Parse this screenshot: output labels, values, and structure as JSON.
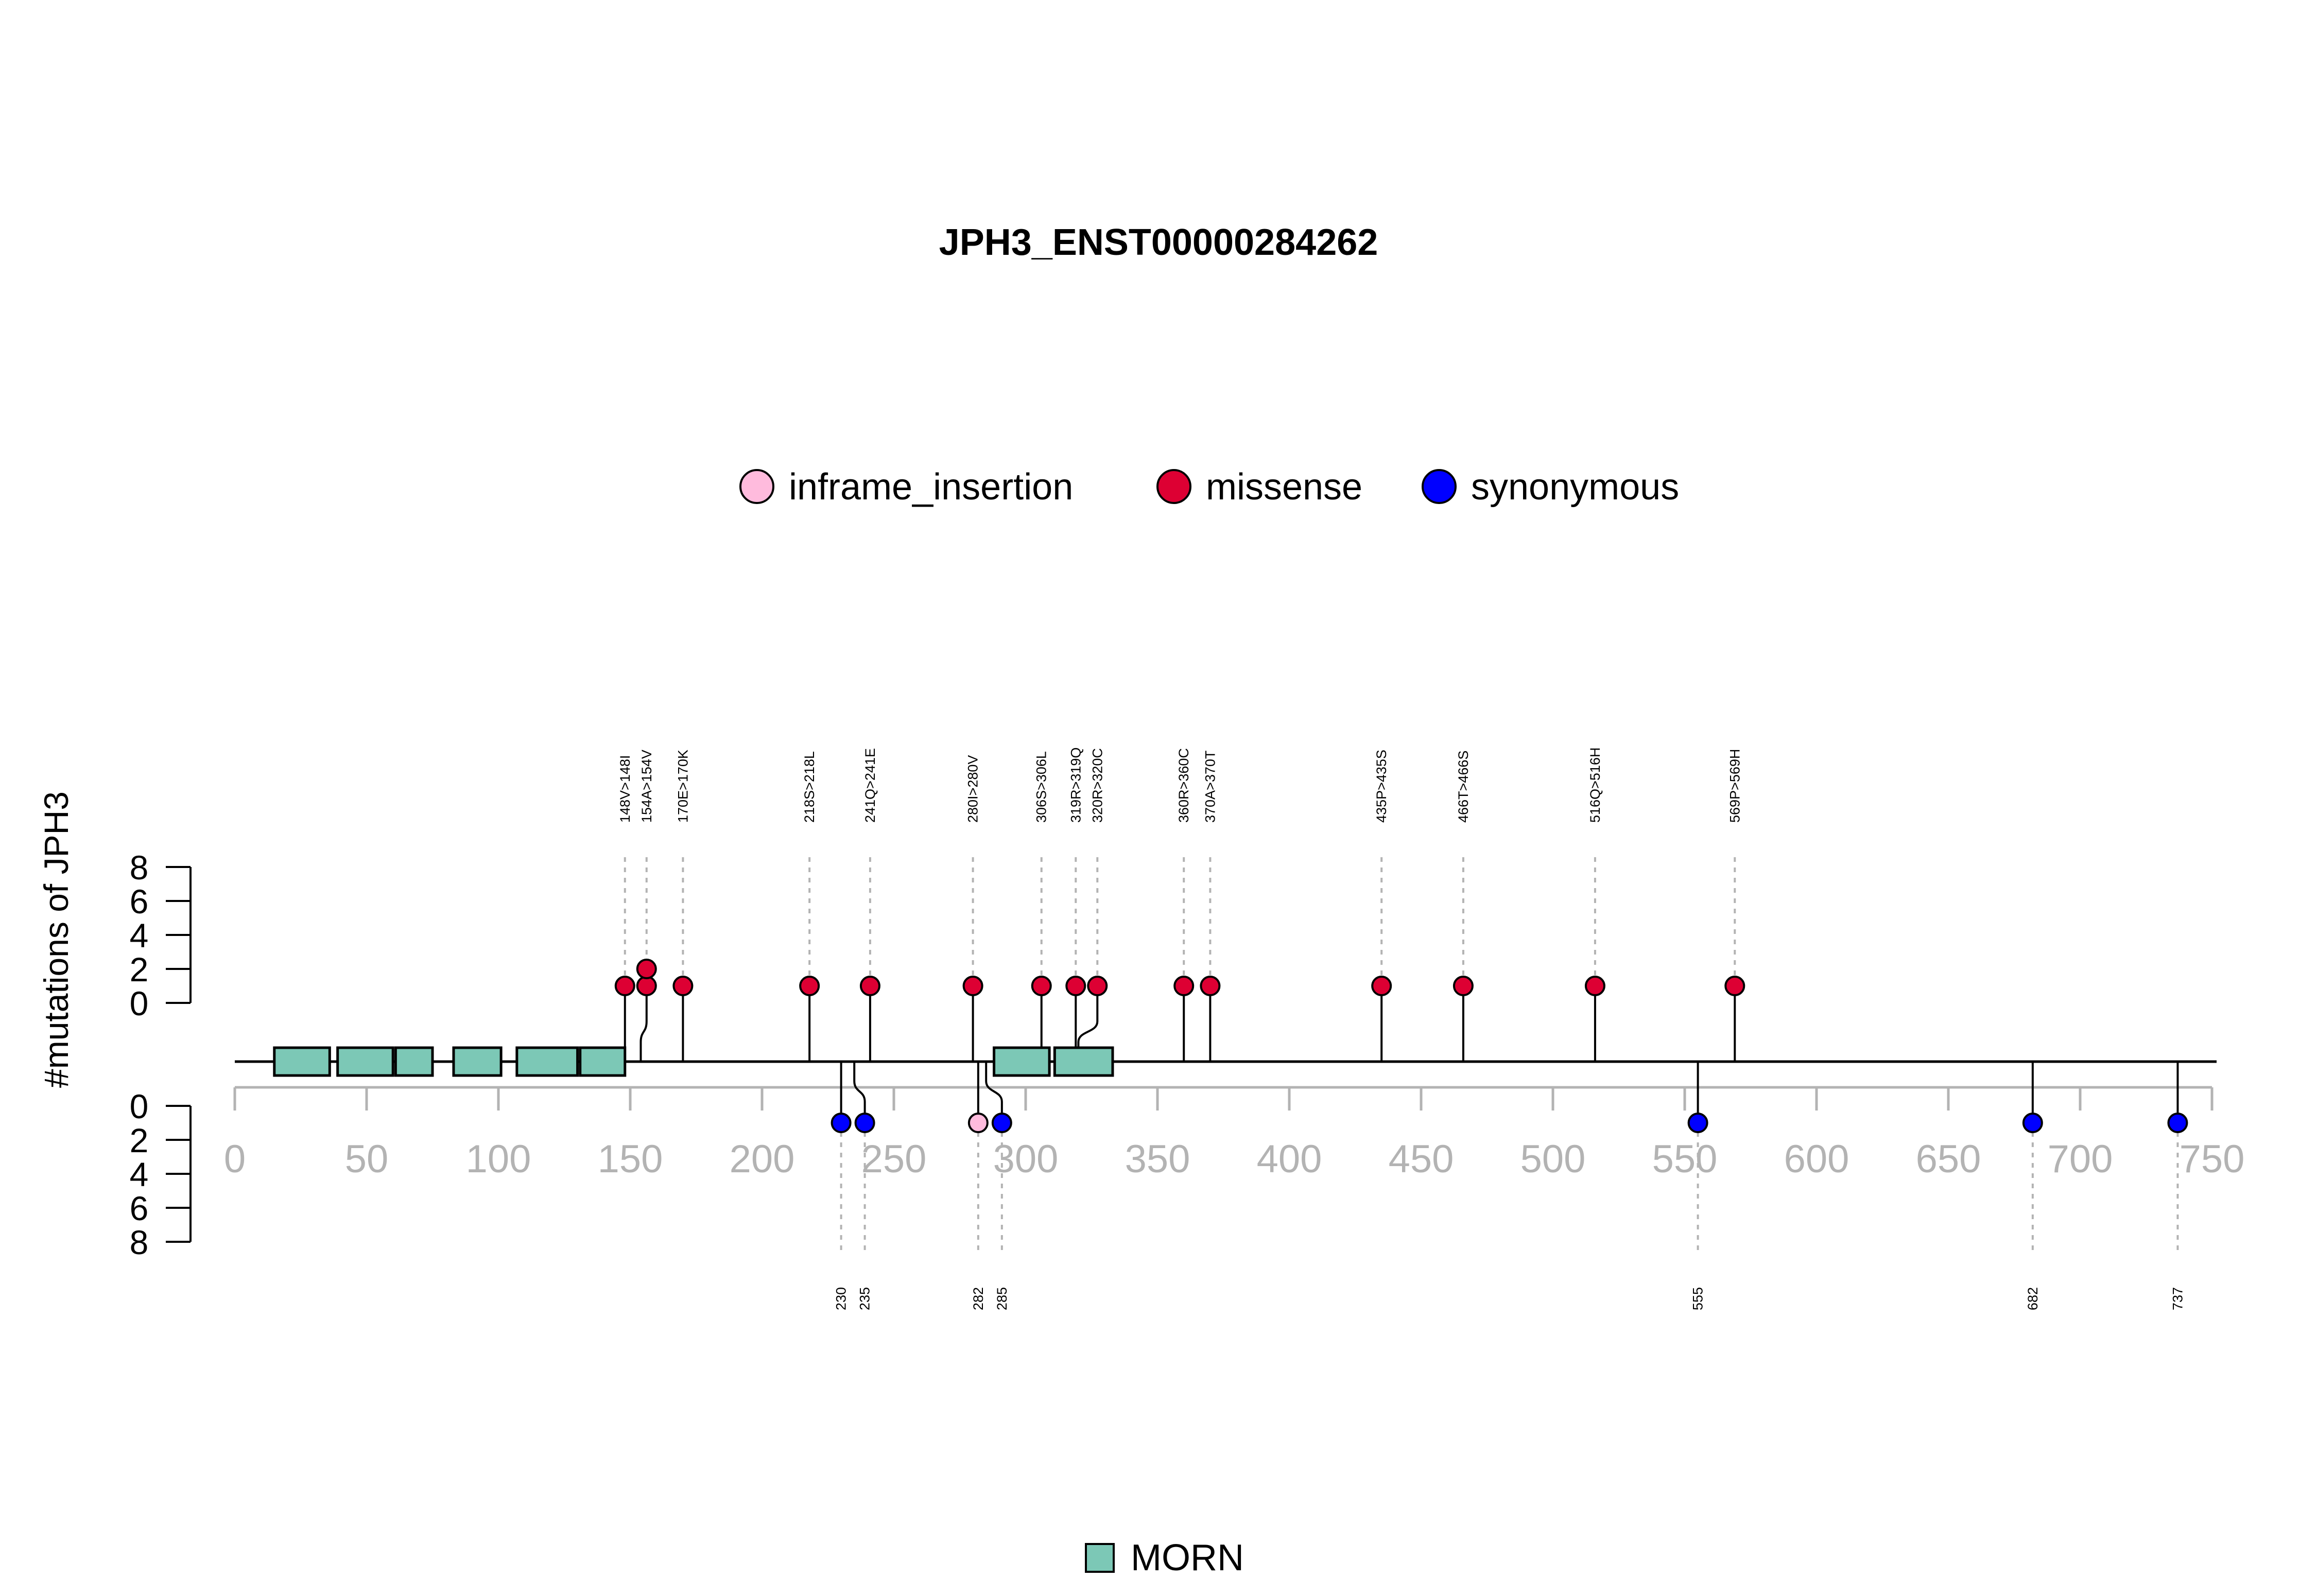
{
  "chart_data": {
    "type": "lollipop",
    "title": "JPH3_ENST00000284262",
    "ylabel": "#mutations of JPH3",
    "protein_length": 748,
    "xlim": [
      0,
      750
    ],
    "x_ticks": [
      0,
      50,
      100,
      150,
      200,
      250,
      300,
      350,
      400,
      450,
      500,
      550,
      600,
      650,
      700,
      750
    ],
    "y_ticks_top": [
      0,
      2,
      4,
      6,
      8
    ],
    "y_ticks_bottom": [
      0,
      2,
      4,
      6,
      8
    ],
    "ylim_top": [
      0,
      8
    ],
    "ylim_bottom": [
      0,
      8
    ],
    "legend_top": [
      {
        "name": "inframe_insertion",
        "color": "#FFBBDD"
      },
      {
        "name": "missense",
        "color": "#DD0033"
      },
      {
        "name": "synonymous",
        "color": "#0000FF"
      }
    ],
    "legend_bottom": [
      {
        "name": "MORN",
        "color": "#7CC8B6"
      }
    ],
    "domains": [
      {
        "name": "MORN",
        "start": 15,
        "end": 36
      },
      {
        "name": "MORN",
        "start": 39,
        "end": 60
      },
      {
        "name": "MORN",
        "start": 61,
        "end": 75
      },
      {
        "name": "MORN",
        "start": 83,
        "end": 101
      },
      {
        "name": "MORN",
        "start": 107,
        "end": 130
      },
      {
        "name": "MORN",
        "start": 131,
        "end": 148
      },
      {
        "name": "MORN",
        "start": 288,
        "end": 309
      },
      {
        "name": "MORN",
        "start": 311,
        "end": 333
      }
    ],
    "top_mutations": [
      {
        "position": 148,
        "count": 1,
        "type": "missense",
        "label": "148V>148I"
      },
      {
        "position": 154,
        "count": 1,
        "type": "missense",
        "label": "154A>154V"
      },
      {
        "position": 154,
        "count": 2,
        "type": "missense",
        "label": ""
      },
      {
        "position": 170,
        "count": 1,
        "type": "missense",
        "label": "170E>170K"
      },
      {
        "position": 218,
        "count": 1,
        "type": "missense",
        "label": "218S>218L"
      },
      {
        "position": 241,
        "count": 1,
        "type": "missense",
        "label": "241Q>241E"
      },
      {
        "position": 280,
        "count": 1,
        "type": "missense",
        "label": "280I>280V"
      },
      {
        "position": 306,
        "count": 1,
        "type": "missense",
        "label": "306S>306L"
      },
      {
        "position": 319,
        "count": 1,
        "type": "missense",
        "label": "319R>319Q"
      },
      {
        "position": 320,
        "count": 1,
        "type": "missense",
        "label": "320R>320C"
      },
      {
        "position": 360,
        "count": 1,
        "type": "missense",
        "label": "360R>360C"
      },
      {
        "position": 370,
        "count": 1,
        "type": "missense",
        "label": "370A>370T"
      },
      {
        "position": 435,
        "count": 1,
        "type": "missense",
        "label": "435P>435S"
      },
      {
        "position": 466,
        "count": 1,
        "type": "missense",
        "label": "466T>466S"
      },
      {
        "position": 516,
        "count": 1,
        "type": "missense",
        "label": "516Q>516H"
      },
      {
        "position": 569,
        "count": 1,
        "type": "missense",
        "label": "569P>569H"
      }
    ],
    "bottom_mutations": [
      {
        "position": 230,
        "count": 1,
        "type": "synonymous",
        "label": "230"
      },
      {
        "position": 235,
        "count": 1,
        "type": "synonymous",
        "label": "235"
      },
      {
        "position": 282,
        "count": 1,
        "type": "inframe_insertion",
        "label": "282"
      },
      {
        "position": 285,
        "count": 1,
        "type": "synonymous",
        "label": "285"
      },
      {
        "position": 555,
        "count": 1,
        "type": "synonymous",
        "label": "555"
      },
      {
        "position": 682,
        "count": 1,
        "type": "synonymous",
        "label": "682"
      },
      {
        "position": 737,
        "count": 1,
        "type": "synonymous",
        "label": "737"
      }
    ]
  }
}
